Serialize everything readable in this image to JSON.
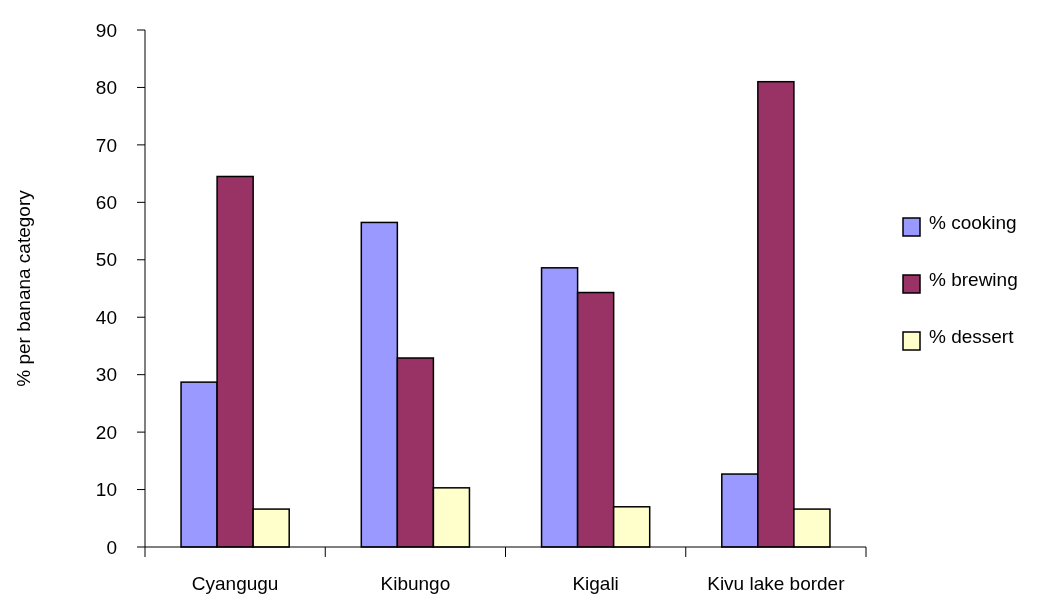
{
  "chart_data": {
    "type": "bar",
    "ylabel": "% per banana category",
    "categories": [
      "Cyangugu",
      "Kibungo",
      "Kigali",
      "Kivu lake border"
    ],
    "series": [
      {
        "name": "% cooking",
        "color": "#9999ff",
        "values": [
          28.7,
          56.5,
          48.6,
          12.7
        ]
      },
      {
        "name": "% brewing",
        "color": "#993366",
        "values": [
          64.5,
          32.9,
          44.3,
          81.0
        ]
      },
      {
        "name": "% dessert",
        "color": "#ffffcc",
        "values": [
          6.6,
          10.3,
          7.0,
          6.6
        ]
      }
    ],
    "ylim": [
      0,
      90
    ],
    "yticks": [
      0,
      10,
      20,
      30,
      40,
      50,
      60,
      70,
      80,
      90
    ],
    "grid": false,
    "legend": "right"
  }
}
